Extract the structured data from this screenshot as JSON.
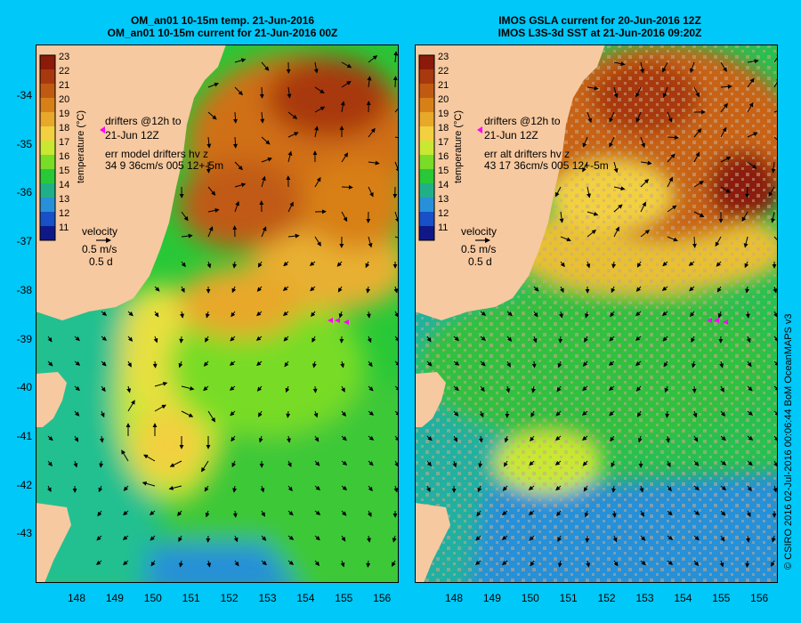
{
  "colors": {
    "background": "#00c8f8",
    "land": "#f7c9a0",
    "missing_data": "#c8a88a",
    "drifter": "#ff00ff"
  },
  "panels": [
    {
      "title_line1": "OM_an01 10-15m temp. 21-Jun-2016",
      "title_line2": "OM_an01 10-15m current for 21-Jun-2016 00Z",
      "colorbar_label": "temperature (°C)",
      "drifters_line1": "drifters @12h to",
      "drifters_line2": "21-Jun 12Z",
      "err_line1": "err model drifters hv z",
      "err_line2": "34 9 36cm/s 005 12+-5m",
      "velocity_label": "velocity",
      "velocity_scale": "0.5 m/s",
      "velocity_time": "0.5 d"
    },
    {
      "title_line1": "IMOS GSLA current for 20-Jun-2016 12Z",
      "title_line2": "IMOS L3S-3d SST at 21-Jun-2016 09:20Z",
      "colorbar_label": "temperature (°C)",
      "drifters_line1": "drifters @12h to",
      "drifters_line2": "21-Jun 12Z",
      "err_line1": "err alt drifters hv z",
      "err_line2": "43 17 36cm/s 005 12+-5m",
      "velocity_label": "velocity",
      "velocity_scale": "0.5 m/s",
      "velocity_time": "0.5 d"
    }
  ],
  "colorbar_ticks": [
    "23",
    "22",
    "21",
    "20",
    "19",
    "18",
    "17",
    "16",
    "15",
    "14",
    "13",
    "12",
    "11"
  ],
  "colorbar_colors": [
    "#8b1a0a",
    "#a8380e",
    "#c05a12",
    "#d88018",
    "#e8a82a",
    "#f2d040",
    "#c8e832",
    "#78dc28",
    "#28c838",
    "#20b088",
    "#2890d8",
    "#1850c8",
    "#101888"
  ],
  "lat_ticks": [
    "-34",
    "-35",
    "-36",
    "-37",
    "-38",
    "-39",
    "-40",
    "-41",
    "-42",
    "-43"
  ],
  "lon_ticks": [
    "148",
    "149",
    "150",
    "151",
    "152",
    "153",
    "154",
    "155",
    "156"
  ],
  "credit": "© CSIRO 2016  02-Jul-2016 00:06:44 BoM OceanMAPS v3"
}
